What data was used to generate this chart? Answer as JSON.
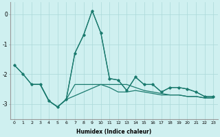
{
  "title": "",
  "xlabel": "Humidex (Indice chaleur)",
  "background_color": "#cff0f0",
  "grid_color": "#aad8d8",
  "line_color": "#1a7a6e",
  "xlim": [
    -0.5,
    23.5
  ],
  "ylim": [
    -3.5,
    0.4
  ],
  "yticks": [
    0,
    -1,
    -2,
    -3
  ],
  "xticks": [
    0,
    1,
    2,
    3,
    4,
    5,
    6,
    7,
    8,
    9,
    10,
    11,
    12,
    13,
    14,
    15,
    16,
    17,
    18,
    19,
    20,
    21,
    22,
    23
  ],
  "series1_x": [
    0,
    1,
    2,
    3,
    4,
    5,
    6,
    7,
    8,
    9,
    10,
    11,
    12,
    13,
    14,
    15,
    16,
    17,
    18,
    19,
    20,
    21,
    22,
    23
  ],
  "series1_y": [
    -1.7,
    -2.0,
    -2.35,
    -2.35,
    -2.9,
    -3.1,
    -2.85,
    -1.3,
    -0.7,
    0.12,
    -0.62,
    -2.15,
    -2.2,
    -2.55,
    -2.1,
    -2.35,
    -2.35,
    -2.6,
    -2.45,
    -2.45,
    -2.5,
    -2.6,
    -2.75,
    -2.75
  ],
  "series2_x": [
    0,
    1,
    2,
    3,
    4,
    5,
    6,
    7,
    8,
    9,
    10,
    11,
    12,
    13,
    14,
    15,
    16,
    17,
    18,
    19,
    20,
    21,
    22,
    23
  ],
  "series2_y": [
    -1.7,
    -2.0,
    -2.35,
    -2.35,
    -2.9,
    -3.1,
    -2.85,
    -1.3,
    -0.7,
    0.12,
    -0.62,
    -2.15,
    -2.2,
    -2.55,
    -2.1,
    -2.35,
    -2.35,
    -2.6,
    -2.45,
    -2.45,
    -2.5,
    -2.6,
    -2.75,
    -2.75
  ],
  "series3_x": [
    2,
    3,
    4,
    5,
    6,
    7,
    8,
    9,
    10,
    11,
    12,
    13,
    14,
    15,
    16,
    17,
    18,
    19,
    20,
    21,
    22,
    23
  ],
  "series3_y": [
    -2.35,
    -2.35,
    -2.9,
    -3.1,
    -2.85,
    -2.35,
    -2.35,
    -2.35,
    -2.35,
    -2.45,
    -2.6,
    -2.6,
    -2.55,
    -2.6,
    -2.65,
    -2.7,
    -2.7,
    -2.7,
    -2.75,
    -2.75,
    -2.8,
    -2.8
  ],
  "series4_x": [
    2,
    3,
    4,
    5,
    6,
    10,
    11,
    12,
    13,
    14,
    15,
    16,
    17,
    18,
    19,
    20,
    21,
    22,
    23
  ],
  "series4_y": [
    -2.35,
    -2.35,
    -2.9,
    -3.1,
    -2.85,
    -2.35,
    -2.35,
    -2.35,
    -2.35,
    -2.45,
    -2.55,
    -2.6,
    -2.65,
    -2.7,
    -2.7,
    -2.75,
    -2.75,
    -2.8,
    -2.8
  ]
}
